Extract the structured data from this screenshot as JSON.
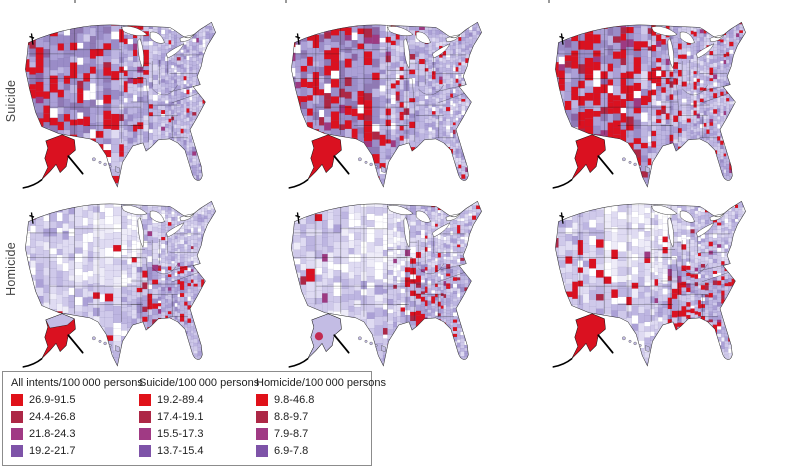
{
  "figure": {
    "row_labels": [
      "Suicide",
      "Homicide"
    ],
    "grid": {
      "rows": 2,
      "cols": 3
    }
  },
  "legend": {
    "columns": [
      {
        "header": "All intents/100 000 persons",
        "items": [
          {
            "range": "26.9-91.5",
            "color": "#e01119"
          },
          {
            "range": "24.4-26.8",
            "color": "#ad2746"
          },
          {
            "range": "21.8-24.3",
            "color": "#a03a84"
          },
          {
            "range": "19.2-21.7",
            "color": "#7e53a8"
          }
        ]
      },
      {
        "header": "Suicide/100 000 persons",
        "items": [
          {
            "range": "19.2-89.4",
            "color": "#e01119"
          },
          {
            "range": "17.4-19.1",
            "color": "#ad2746"
          },
          {
            "range": "15.5-17.3",
            "color": "#a03a84"
          },
          {
            "range": "13.7-15.4",
            "color": "#7e53a8"
          }
        ]
      },
      {
        "header": "Homicide/100 000 persons",
        "items": [
          {
            "range": "9.8-46.8",
            "color": "#e01119"
          },
          {
            "range": "8.8-9.7",
            "color": "#ad2746"
          },
          {
            "range": "7.9-8.7",
            "color": "#a03a84"
          },
          {
            "range": "6.9-7.8",
            "color": "#7e53a8"
          }
        ]
      }
    ]
  },
  "map_colors": {
    "county_scale": [
      "#ffffff",
      "#eeecf8",
      "#dfdbf2",
      "#cfc9ea",
      "#bdb5e1",
      "#aba0d6",
      "#9a8cc7",
      "#8f79b4",
      "#8a64a4"
    ],
    "red": "#da1120",
    "crimson": "#ad2745",
    "magenta": "#9d3a82",
    "lavender": "#c3bce4",
    "state_border": "#1a1a1a",
    "coast_outline": "#2a2a2a",
    "water": "#ffffff"
  },
  "maps": [
    {
      "id": "map-suicide-period-1",
      "intent": "suicide",
      "period_index": 0,
      "alaska": "red"
    },
    {
      "id": "map-suicide-period-2",
      "intent": "suicide",
      "period_index": 1,
      "alaska": "red"
    },
    {
      "id": "map-suicide-period-3",
      "intent": "suicide",
      "period_index": 2,
      "alaska": "red"
    },
    {
      "id": "map-homicide-period-1",
      "intent": "homicide",
      "period_index": 0,
      "alaska": "mixed"
    },
    {
      "id": "map-homicide-period-2",
      "intent": "homicide",
      "period_index": 1,
      "alaska": "lavender"
    },
    {
      "id": "map-homicide-period-3",
      "intent": "homicide",
      "period_index": 2,
      "alaska": "red"
    }
  ],
  "chart_data": {
    "type": "heatmap",
    "subtype": "county-choropleth-map-grid",
    "rows": [
      "Suicide",
      "Homicide"
    ],
    "columns_per_row": 3,
    "unit": "deaths per 100 000 persons",
    "legend_position": "bottom-left",
    "legend_bins": {
      "all_intents_per_100000": [
        [
          26.9,
          91.5
        ],
        [
          24.4,
          26.8
        ],
        [
          21.8,
          24.3
        ],
        [
          19.2,
          21.7
        ]
      ],
      "suicide_per_100000": [
        [
          19.2,
          89.4
        ],
        [
          17.4,
          19.1
        ],
        [
          15.5,
          17.3
        ],
        [
          13.7,
          15.4
        ]
      ],
      "homicide_per_100000": [
        [
          9.8,
          46.8
        ],
        [
          8.8,
          9.7
        ],
        [
          7.9,
          8.7
        ],
        [
          6.9,
          7.8
        ]
      ]
    },
    "bin_colors_high_to_low": [
      "#e01119",
      "#ad2746",
      "#a03a84",
      "#7e53a8"
    ],
    "patterns": {
      "suicide_row": "highest-rate (red) counties concentrated in the western/mountain states and Alaska; rates and red coverage increase from left map to right map",
      "homicide_row": "highest-rate (red) counties concentrated in the Southeast (Mississippi delta, Deep South, Carolinas) with light low-rate counties across the Great Plains; red coverage increases from left map to right map"
    }
  }
}
